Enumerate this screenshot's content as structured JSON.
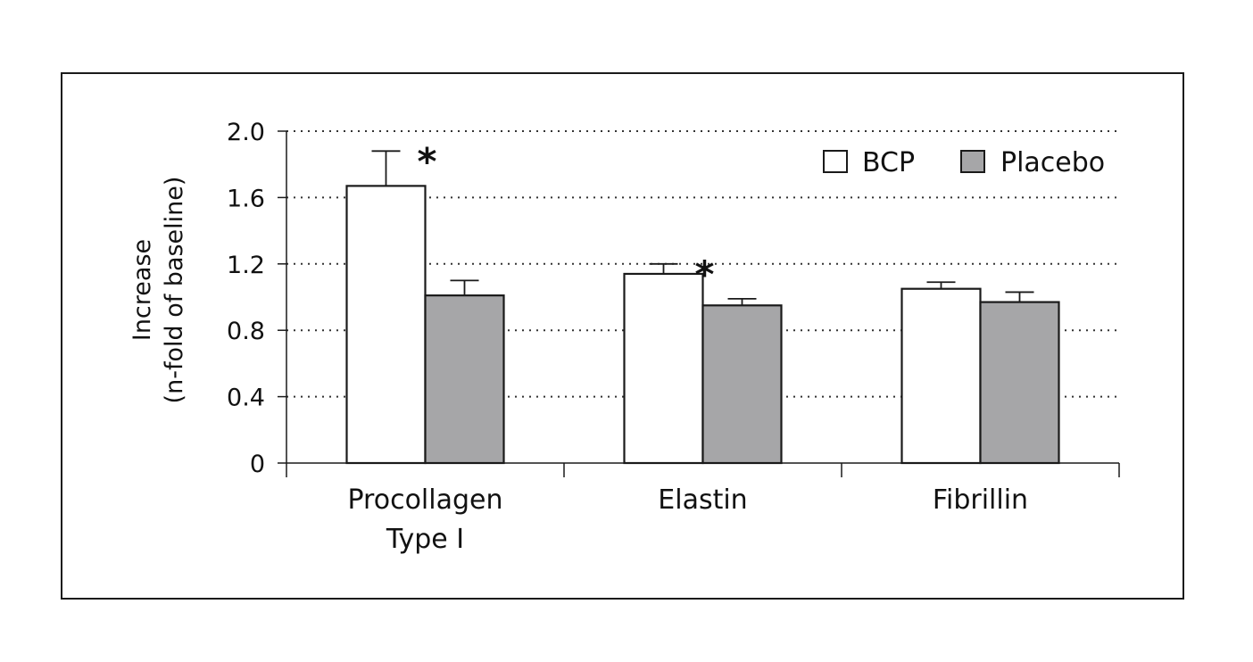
{
  "chart_data": {
    "type": "bar",
    "categories": [
      [
        "Procollagen",
        "Type I"
      ],
      [
        "Elastin"
      ],
      [
        "Fibrillin"
      ]
    ],
    "series": [
      {
        "name": "BCP",
        "values": [
          1.67,
          1.14,
          1.05
        ],
        "errors": [
          0.21,
          0.06,
          0.04
        ],
        "color": "#ffffff"
      },
      {
        "name": "Placebo",
        "values": [
          1.01,
          0.95,
          0.97
        ],
        "errors": [
          0.09,
          0.04,
          0.06
        ],
        "color": "#a6a6a8"
      }
    ],
    "significance": [
      "*",
      "*",
      ""
    ],
    "ylabel": [
      "Increase",
      "(n-fold of baseline)"
    ],
    "xlabel": "",
    "ylim": [
      0,
      2.0
    ],
    "yticks": [
      "0",
      "0.4",
      "0.8",
      "1.2",
      "1.6",
      "2.0"
    ],
    "grid": "dotted horizontal",
    "legend_position": "top-right"
  }
}
